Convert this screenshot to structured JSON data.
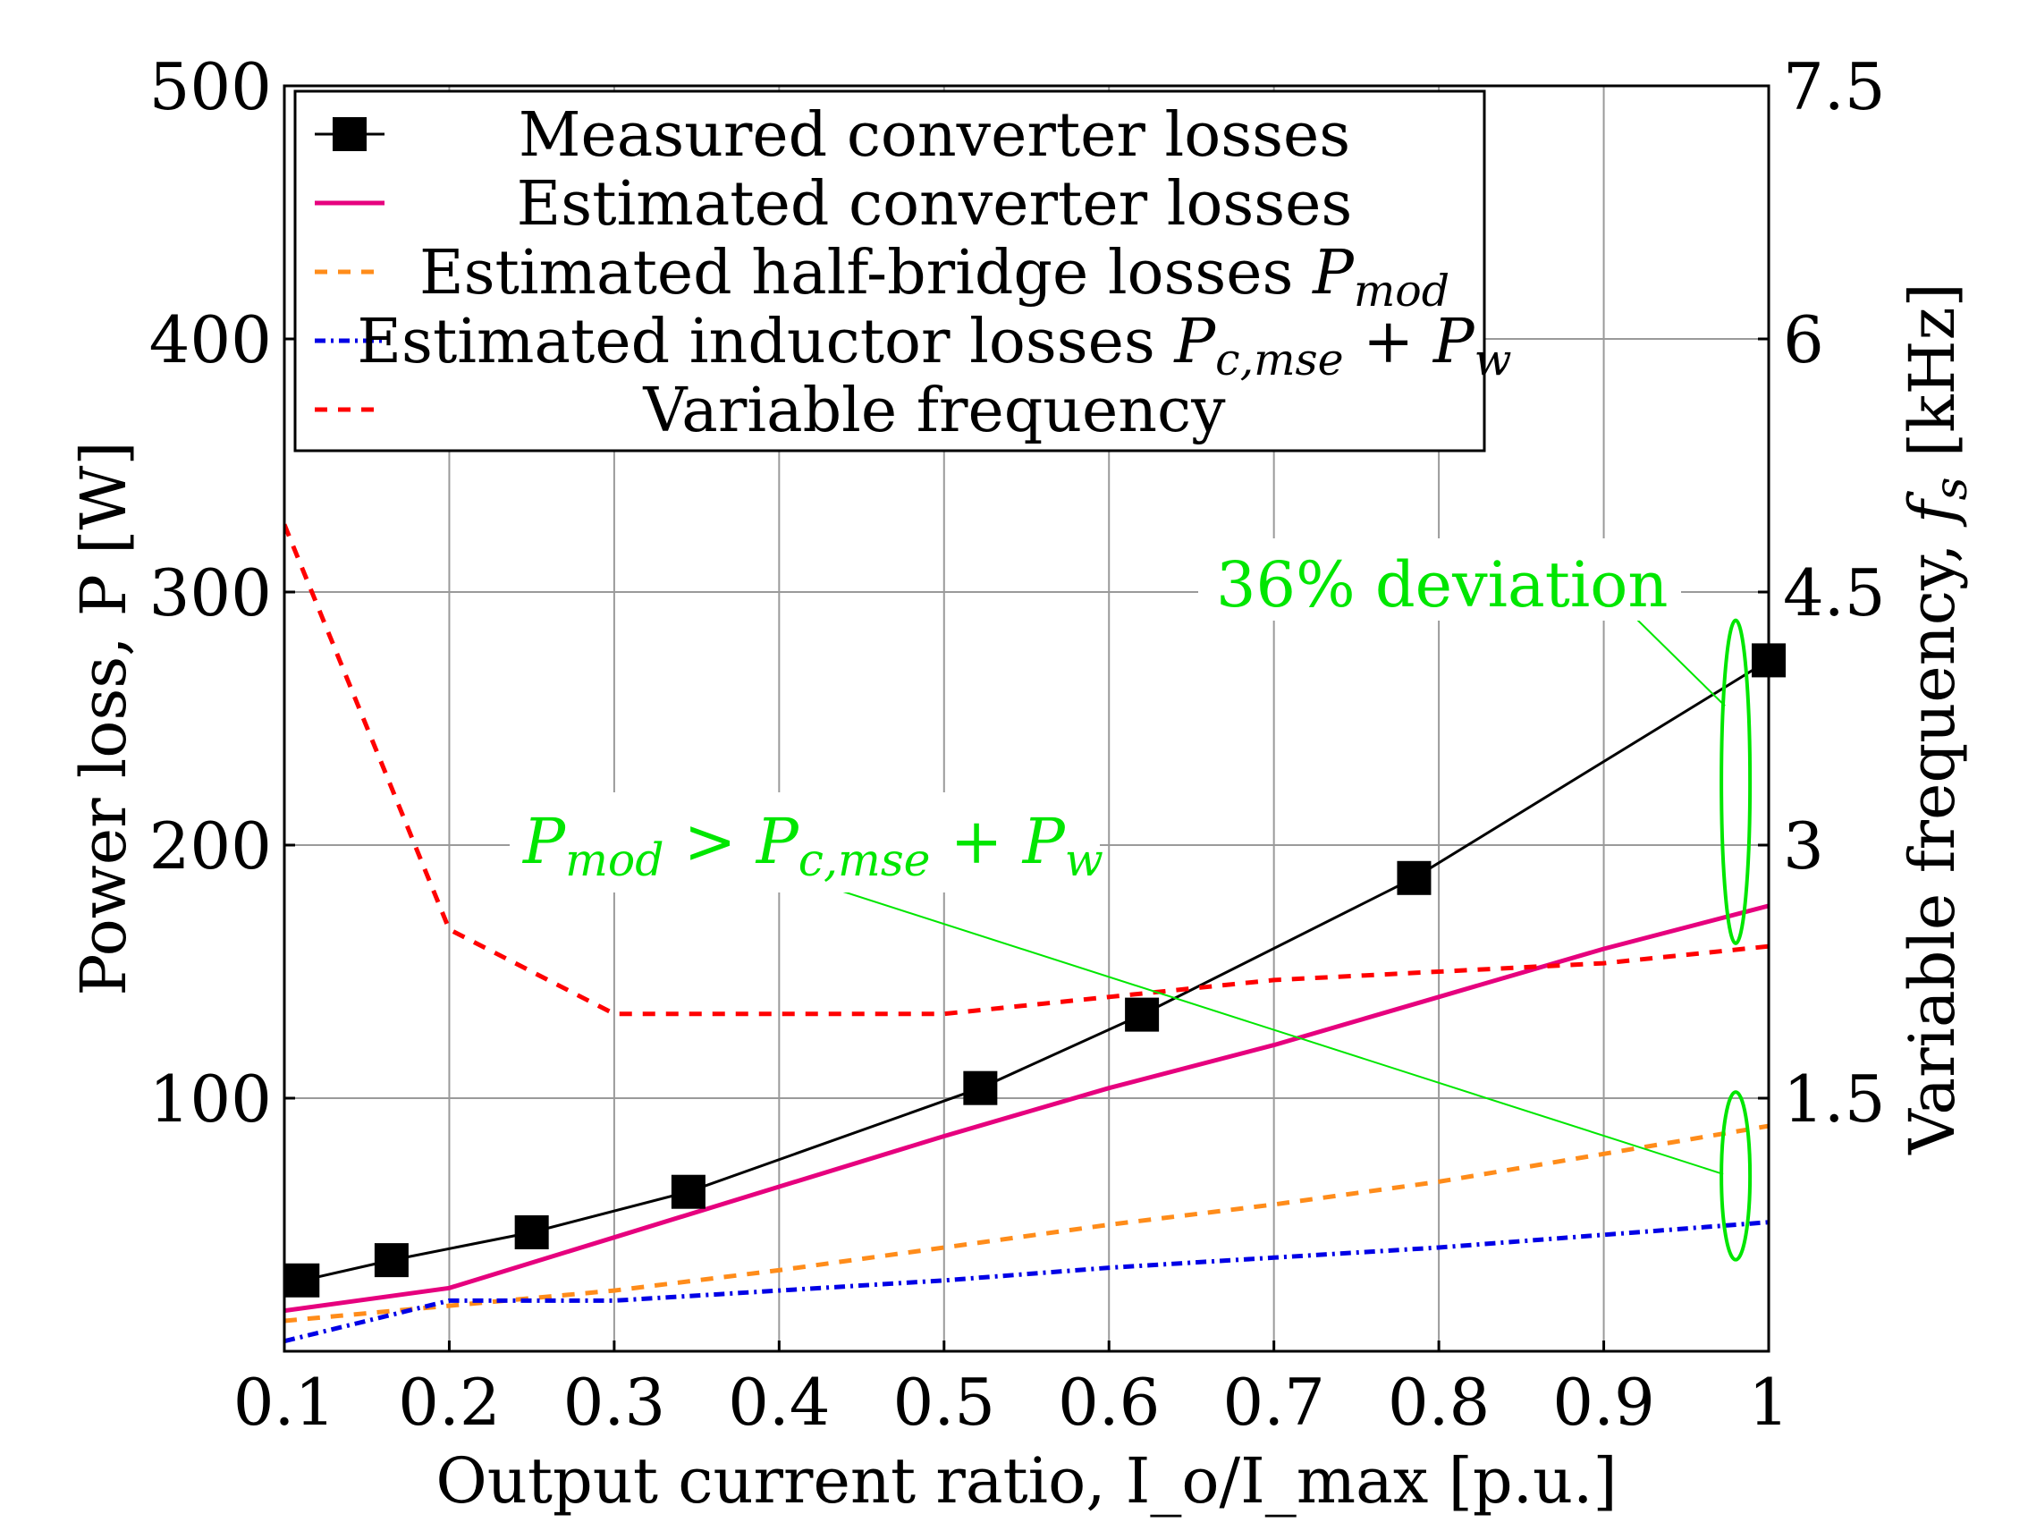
{
  "chart_data": {
    "type": "line",
    "title": "",
    "xlabel": "Output current ratio, I_o/I_max [p.u.]",
    "ylabel_left": "Power loss, P [W]",
    "ylabel_right": "Variable frequency, f_s [kHz]",
    "xlim": [
      0.1,
      1.0
    ],
    "ylim_left": [
      0,
      500
    ],
    "ylim_right": [
      0,
      7.5
    ],
    "xticks": [
      "0.1",
      "0.2",
      "0.3",
      "0.4",
      "0.5",
      "0.6",
      "0.7",
      "0.8",
      "0.9",
      "1"
    ],
    "xtick_values": [
      0.1,
      0.2,
      0.3,
      0.4,
      0.5,
      0.6,
      0.7,
      0.8,
      0.9,
      1.0
    ],
    "yticks_left": [
      "100",
      "200",
      "300",
      "400",
      "500"
    ],
    "ytick_values_left": [
      100,
      200,
      300,
      400,
      500
    ],
    "yticks_right": [
      "1.5",
      "3",
      "4.5",
      "6",
      "7.5"
    ],
    "ytick_values_right": [
      1.5,
      3,
      4.5,
      6,
      7.5
    ],
    "grid": true,
    "legend_position": "top",
    "series": [
      {
        "name": "Measured converter losses",
        "axis": "left",
        "color": "#000000",
        "style": "solid-marker",
        "x": [
          0.111,
          0.165,
          0.25,
          0.345,
          0.522,
          0.62,
          0.785,
          1.0
        ],
        "y": [
          28,
          36,
          47,
          63,
          104,
          133,
          187,
          273
        ]
      },
      {
        "name": "Estimated converter losses",
        "axis": "left",
        "color": "#e6007e",
        "style": "solid",
        "x": [
          0.1,
          0.2,
          0.3,
          0.4,
          0.5,
          0.6,
          0.7,
          0.8,
          0.9,
          1.0
        ],
        "y": [
          16,
          25,
          45,
          65,
          85,
          104,
          121,
          140,
          159,
          176
        ]
      },
      {
        "name": "Estimated half-bridge losses P_mod",
        "axis": "left",
        "color": "#ff8c1a",
        "style": "dashed",
        "x": [
          0.1,
          0.2,
          0.3,
          0.4,
          0.5,
          0.6,
          0.7,
          0.8,
          0.9,
          1.0
        ],
        "y": [
          12,
          18,
          24,
          32,
          41,
          50,
          58,
          67,
          78,
          89
        ]
      },
      {
        "name": "Estimated inductor losses P_c,mse + P_w",
        "axis": "left",
        "color": "#0000e6",
        "style": "dash-dot",
        "x": [
          0.1,
          0.2,
          0.3,
          0.4,
          0.5,
          0.6,
          0.7,
          0.8,
          0.9,
          1.0
        ],
        "y": [
          4,
          20,
          20,
          24,
          28,
          33,
          37,
          41,
          46,
          51
        ]
      },
      {
        "name": "Variable frequency",
        "axis": "right",
        "color": "#ff0000",
        "style": "dashed",
        "x": [
          0.1,
          0.2,
          0.3,
          0.4,
          0.5,
          0.6,
          0.7,
          0.8,
          0.9,
          1.0
        ],
        "y": [
          4.9,
          2.5,
          2.0,
          2.0,
          2.0,
          2.1,
          2.2,
          2.25,
          2.3,
          2.4
        ]
      }
    ],
    "annotations": [
      {
        "text": "36% deviation",
        "color": "#00e600"
      },
      {
        "text": "P_mod > P_c,mse + P_w",
        "color": "#00e600"
      }
    ]
  }
}
